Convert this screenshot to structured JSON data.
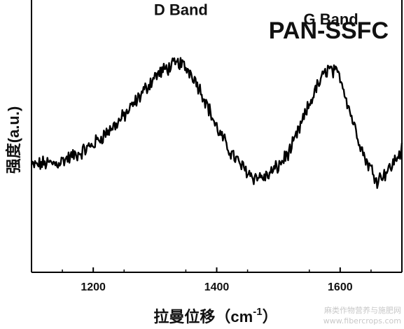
{
  "chart_data": {
    "type": "line",
    "title": "PAN-SSFC",
    "xlabel": "拉曼位移（cm",
    "xlabel_sup": "-1",
    "xlabel_close": "）",
    "ylabel": "强度(a.u.)",
    "xlim": [
      1100,
      1700
    ],
    "ylim": [
      0,
      1
    ],
    "xticks": [
      1200,
      1400,
      1600
    ],
    "yticks": [],
    "grid": false,
    "annotations": [
      {
        "text": "D Band",
        "x": 1342,
        "y": 0.945
      },
      {
        "text": "G Band",
        "x": 1585,
        "y": 0.91
      }
    ],
    "series": [
      {
        "x": [
          1100,
          1120,
          1140,
          1160,
          1180,
          1200,
          1220,
          1240,
          1260,
          1280,
          1300,
          1320,
          1340,
          1360,
          1380,
          1400,
          1420,
          1440,
          1460,
          1480,
          1500,
          1520,
          1540,
          1560,
          1580,
          1600,
          1620,
          1640,
          1660,
          1680,
          1700
        ],
        "y": [
          0.39,
          0.4,
          0.4,
          0.42,
          0.44,
          0.47,
          0.51,
          0.55,
          0.6,
          0.66,
          0.72,
          0.75,
          0.77,
          0.73,
          0.64,
          0.53,
          0.45,
          0.39,
          0.35,
          0.35,
          0.39,
          0.45,
          0.56,
          0.67,
          0.75,
          0.72,
          0.56,
          0.42,
          0.34,
          0.38,
          0.45
        ]
      }
    ]
  },
  "watermark": {
    "line1": "麻类作物营养与施肥网",
    "line2": "www.fibercrops.com"
  }
}
